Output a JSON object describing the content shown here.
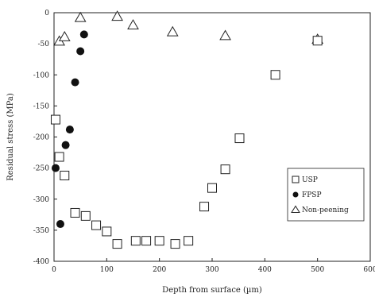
{
  "chart_data": {
    "type": "scatter",
    "title": "",
    "xlabel": "Depth from surface (µm)",
    "ylabel": "Residual stress (MPa)",
    "xlim": [
      0,
      600
    ],
    "ylim": [
      -400,
      0
    ],
    "xticks": [
      0,
      100,
      200,
      300,
      400,
      500,
      600
    ],
    "yticks": [
      0,
      -50,
      -100,
      -150,
      -200,
      -250,
      -300,
      -350,
      -400
    ],
    "grid": false,
    "legend_position": "right",
    "series": [
      {
        "name": "USP",
        "marker": "open-square",
        "color": "#222222",
        "points": [
          {
            "x": 3,
            "y": -172
          },
          {
            "x": 10,
            "y": -232
          },
          {
            "x": 20,
            "y": -262
          },
          {
            "x": 40,
            "y": -322
          },
          {
            "x": 60,
            "y": -327
          },
          {
            "x": 80,
            "y": -342
          },
          {
            "x": 100,
            "y": -352
          },
          {
            "x": 120,
            "y": -372
          },
          {
            "x": 155,
            "y": -367
          },
          {
            "x": 175,
            "y": -367
          },
          {
            "x": 200,
            "y": -367
          },
          {
            "x": 230,
            "y": -372
          },
          {
            "x": 255,
            "y": -367
          },
          {
            "x": 285,
            "y": -312
          },
          {
            "x": 300,
            "y": -282
          },
          {
            "x": 325,
            "y": -252
          },
          {
            "x": 352,
            "y": -202
          },
          {
            "x": 420,
            "y": -100
          },
          {
            "x": 500,
            "y": -45
          }
        ]
      },
      {
        "name": "FPSP",
        "marker": "filled-circle",
        "color": "#111111",
        "points": [
          {
            "x": 3,
            "y": -250
          },
          {
            "x": 12,
            "y": -340
          },
          {
            "x": 22,
            "y": -213
          },
          {
            "x": 30,
            "y": -188
          },
          {
            "x": 40,
            "y": -112
          },
          {
            "x": 50,
            "y": -62
          },
          {
            "x": 57,
            "y": -35
          }
        ]
      },
      {
        "name": "Non-peening",
        "marker": "open-triangle",
        "color": "#222222",
        "points": [
          {
            "x": 10,
            "y": -46
          },
          {
            "x": 20,
            "y": -39
          },
          {
            "x": 50,
            "y": -8
          },
          {
            "x": 120,
            "y": -6
          },
          {
            "x": 150,
            "y": -20
          },
          {
            "x": 225,
            "y": -31
          },
          {
            "x": 325,
            "y": -37
          },
          {
            "x": 500,
            "y": -43
          }
        ]
      }
    ]
  }
}
